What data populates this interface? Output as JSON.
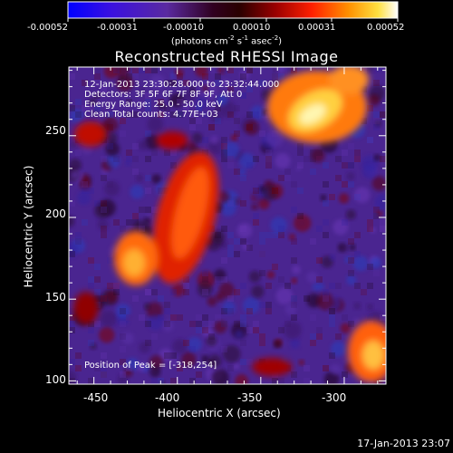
{
  "colorbar": {
    "tick_labels": [
      "-0.00052",
      "-0.00031",
      "-0.00010",
      "0.00010",
      "0.00031",
      "0.00052"
    ],
    "units_prefix": "(photons cm",
    "units_exp1": "-2",
    "units_mid": " s",
    "units_exp2": "-1",
    "units_mid2": " asec",
    "units_exp3": "-2",
    "units_suffix": ")"
  },
  "title": "Reconstructed RHESSI Image",
  "info": {
    "time_range": "12-Jan-2013 23:30:28.000 to 23:32:44.000",
    "detectors": "Detectors: 3F 5F 6F 7F 8F 9F, Att 0",
    "energy_range": "Energy Range: 25.0 - 50.0 keV",
    "clean_counts": "Clean    Total counts: 4.77E+03"
  },
  "peak_text": "Position of Peak = [-318,254]",
  "axes": {
    "xlabel": "Heliocentric X (arcsec)",
    "ylabel": "Heliocentric Y (arcsec)",
    "xticks": [
      "-450",
      "-400",
      "-350",
      "-300"
    ],
    "yticks": [
      "250",
      "200",
      "150",
      "100"
    ],
    "x_range": [
      -465,
      -275
    ],
    "y_range": [
      98,
      292
    ]
  },
  "footer_timestamp": "17-Jan-2013 23:07",
  "colors": {
    "background": "#000000",
    "foreground": "#ffffff",
    "bright_source": "#fff2a0",
    "emission": "#ff6a1a",
    "noise_floor": "#5a2a9a"
  }
}
